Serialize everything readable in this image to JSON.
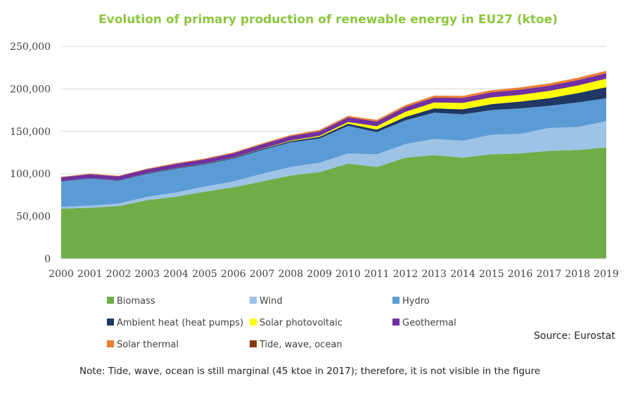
{
  "chart_data": {
    "type": "area",
    "stacked": true,
    "title": "Evolution of primary production of renewable energy in EU27 (ktoe)",
    "xlabel": "",
    "ylabel": "",
    "ylim": [
      0,
      250000
    ],
    "yticks": [
      0,
      50000,
      100000,
      150000,
      200000,
      250000
    ],
    "ytick_labels": [
      "0",
      "50,000",
      "100,000",
      "150,000",
      "200,000",
      "250,000"
    ],
    "grid": true,
    "legend_position": "bottom",
    "x": [
      "2000",
      "2001",
      "2002",
      "2003",
      "2004",
      "2005",
      "2006",
      "2007",
      "2008",
      "2009",
      "2010",
      "2011",
      "2012",
      "2013",
      "2014",
      "2015",
      "2016",
      "2017",
      "2018",
      "2019"
    ],
    "series": [
      {
        "name": "Biomass",
        "color": "#70ad47",
        "values": [
          59000,
          60000,
          62000,
          69000,
          73000,
          79000,
          84000,
          91000,
          98000,
          102000,
          112000,
          108000,
          119000,
          122000,
          119000,
          123000,
          124000,
          127000,
          128000,
          131000
        ]
      },
      {
        "name": "Wind",
        "color": "#9dc3e6",
        "values": [
          2000,
          2500,
          3000,
          4000,
          5000,
          6000,
          7000,
          9000,
          10000,
          11000,
          12000,
          15000,
          16000,
          19000,
          20000,
          23000,
          23000,
          27000,
          27000,
          31000
        ]
      },
      {
        "name": "Hydro",
        "color": "#5b9bd5",
        "values": [
          30000,
          32000,
          27000,
          27000,
          28000,
          26000,
          27000,
          28000,
          29000,
          28500,
          32500,
          26000,
          28000,
          31000,
          31000,
          29000,
          30000,
          26000,
          29000,
          27000
        ]
      },
      {
        "name": "Ambient heat (heat pumps)",
        "color": "#1f3864",
        "values": [
          300,
          400,
          500,
          600,
          700,
          900,
          1000,
          1200,
          1500,
          2000,
          2500,
          3000,
          4000,
          5000,
          6000,
          7000,
          8000,
          9000,
          11000,
          13000
        ]
      },
      {
        "name": "Solar photovoltaic",
        "color": "#ffff00",
        "values": [
          10,
          20,
          30,
          50,
          100,
          150,
          200,
          300,
          700,
          1200,
          2000,
          4000,
          6000,
          7000,
          7500,
          8000,
          8000,
          8500,
          9000,
          10000
        ]
      },
      {
        "name": "Geothermal",
        "color": "#7030a0",
        "values": [
          4600,
          4600,
          4500,
          4800,
          4900,
          5000,
          5000,
          5100,
          5200,
          5300,
          5500,
          5600,
          5700,
          5800,
          5900,
          6000,
          6100,
          6200,
          6300,
          6400
        ]
      },
      {
        "name": "Solar thermal",
        "color": "#ed7d31",
        "values": [
          500,
          550,
          600,
          700,
          800,
          900,
          1000,
          1150,
          1300,
          1500,
          1700,
          1900,
          2100,
          2200,
          2300,
          2400,
          2500,
          2600,
          2700,
          2800
        ]
      },
      {
        "name": "Tide, wave, ocean",
        "color": "#843c0c",
        "values": [
          45,
          45,
          45,
          45,
          45,
          45,
          45,
          45,
          45,
          45,
          45,
          45,
          45,
          45,
          45,
          45,
          45,
          45,
          45,
          45
        ]
      }
    ]
  },
  "source": "Source: Eurostat",
  "note": "Note: Tide, wave, ocean is still marginal (45 ktoe in 2017); therefore, it is not visible in the figure"
}
